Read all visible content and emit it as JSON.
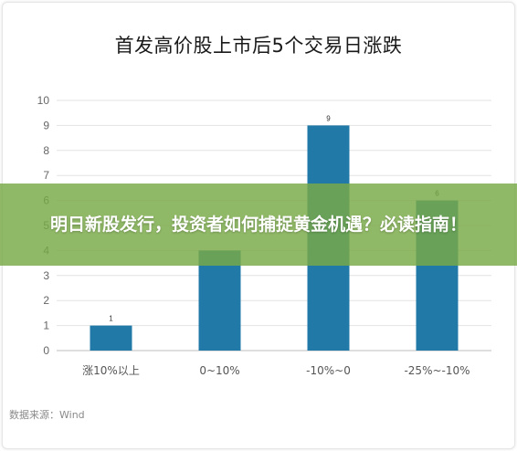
{
  "chart_data": {
    "type": "bar",
    "title": "首发高价股上市后5个交易日涨跌",
    "categories": [
      "涨10%以上",
      "0~10%",
      "-10%~0",
      "-25%~-10%"
    ],
    "values": [
      1,
      4,
      9,
      6
    ],
    "data_labels": [
      "1",
      "",
      "9",
      "6"
    ],
    "ylim": [
      0,
      10
    ],
    "yticks": [
      "0",
      "1",
      "2",
      "3",
      "4",
      "5",
      "6",
      "7",
      "8",
      "9",
      "10"
    ],
    "grid": true,
    "bar_color": "#2179a8",
    "source": "数据来源：Wind"
  },
  "overlay": {
    "headline": "明日新股发行，投资者如何捕捉黄金机遇？必读指南！",
    "color": "#78aa46"
  }
}
